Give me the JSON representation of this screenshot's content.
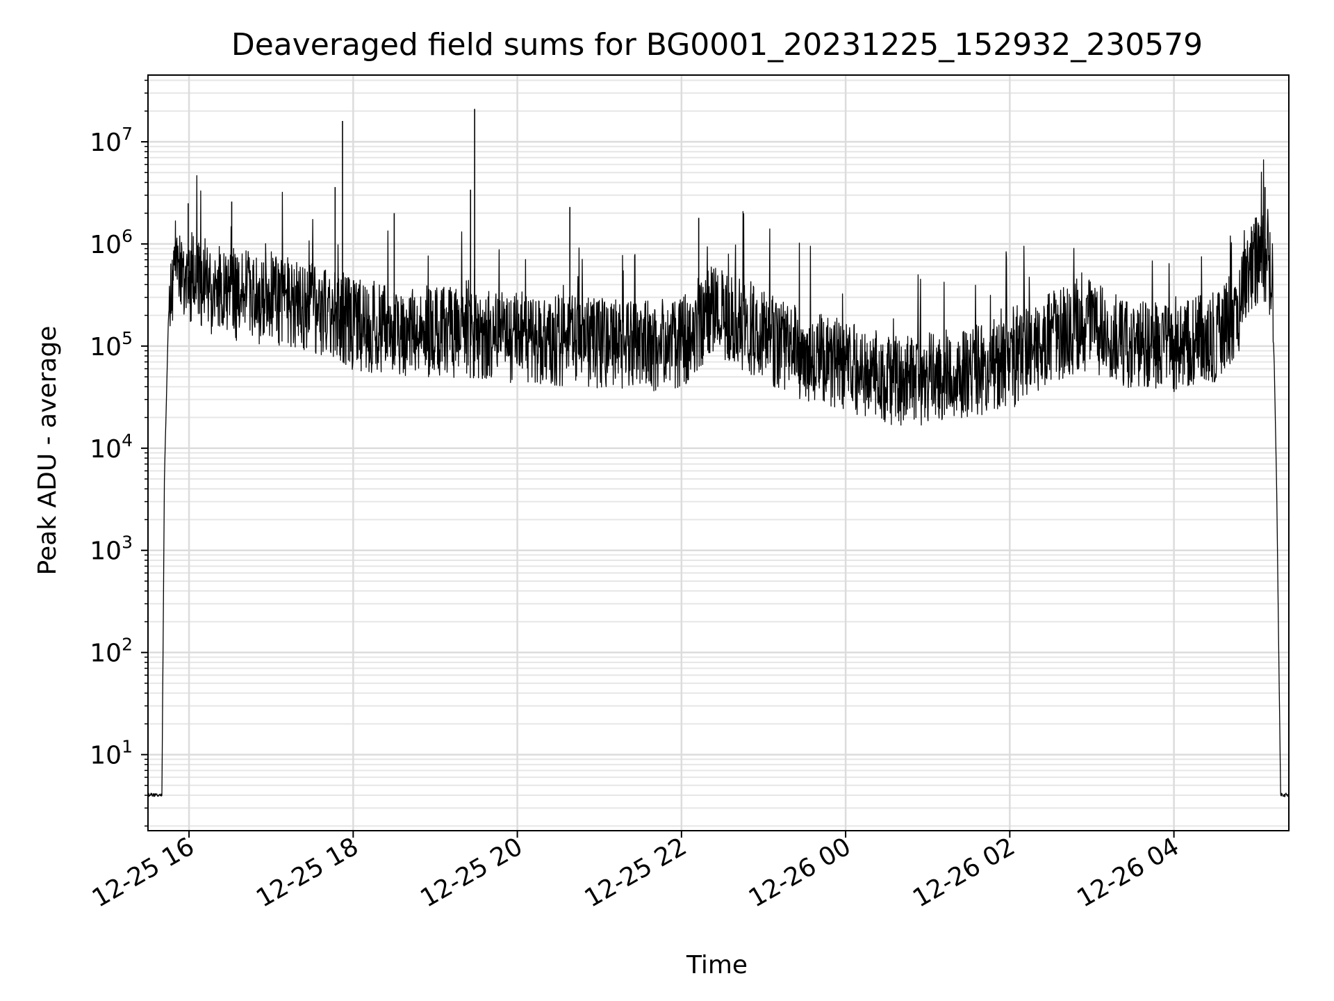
{
  "chart_data": {
    "type": "line",
    "title": "Deaveraged field sums for BG0001_20231225_152932_230579",
    "xlabel": "Time",
    "ylabel": "Peak ADU - average",
    "x_tick_labels": [
      "12-25 16",
      "12-25 18",
      "12-25 20",
      "12-25 22",
      "12-26 00",
      "12-26 02",
      "12-26 04"
    ],
    "x_tick_hours": [
      16,
      18,
      20,
      22,
      24,
      26,
      28
    ],
    "xlim_hours": [
      15.5,
      29.4
    ],
    "y_tick_labels": [
      {
        "base": "10",
        "exp": "1",
        "value": 10
      },
      {
        "base": "10",
        "exp": "2",
        "value": 100
      },
      {
        "base": "10",
        "exp": "3",
        "value": 1000
      },
      {
        "base": "10",
        "exp": "4",
        "value": 10000
      },
      {
        "base": "10",
        "exp": "5",
        "value": 100000
      },
      {
        "base": "10",
        "exp": "6",
        "value": 1000000
      },
      {
        "base": "10",
        "exp": "7",
        "value": 10000000
      }
    ],
    "yscale": "log",
    "ylim": [
      1.8,
      45000000
    ],
    "grid": true,
    "line_color": "#000000",
    "series": [
      {
        "x_hours": [
          15.5,
          15.67,
          15.68,
          15.7,
          15.75,
          15.8,
          15.85,
          16.0,
          16.2,
          16.5,
          17.0,
          17.5,
          17.8,
          18.0,
          18.5,
          19.0,
          19.5,
          20.0,
          20.5,
          21.0,
          21.5,
          22.0,
          22.2,
          22.4,
          22.5,
          23.0,
          23.5,
          24.0,
          24.5,
          24.8,
          25.0,
          25.5,
          26.0,
          26.2,
          26.5,
          27.0,
          27.2,
          27.5,
          28.0,
          28.5,
          28.8,
          28.95,
          29.1,
          29.2,
          29.25,
          29.3,
          29.4
        ],
        "y": [
          4,
          4,
          50,
          5000,
          200000,
          500000,
          700000,
          600000,
          450000,
          400000,
          350000,
          300000,
          250000,
          200000,
          180000,
          170000,
          160000,
          150000,
          140000,
          130000,
          120000,
          130000,
          200000,
          300000,
          250000,
          150000,
          100000,
          80000,
          60000,
          55000,
          60000,
          70000,
          80000,
          100000,
          150000,
          200000,
          150000,
          130000,
          120000,
          150000,
          300000,
          800000,
          900000,
          500000,
          5000,
          4,
          4
        ]
      }
    ],
    "spikes": [
      {
        "x_hours": 15.99,
        "y": 2500000
      },
      {
        "x_hours": 16.52,
        "y": 2600000
      },
      {
        "x_hours": 17.78,
        "y": 3600000
      },
      {
        "x_hours": 17.87,
        "y": 16000000
      },
      {
        "x_hours": 18.5,
        "y": 2000000
      },
      {
        "x_hours": 19.43,
        "y": 3400000
      },
      {
        "x_hours": 19.48,
        "y": 21000000
      },
      {
        "x_hours": 20.64,
        "y": 2300000
      },
      {
        "x_hours": 22.21,
        "y": 1800000
      },
      {
        "x_hours": 29.11,
        "y": 3600000
      }
    ]
  }
}
